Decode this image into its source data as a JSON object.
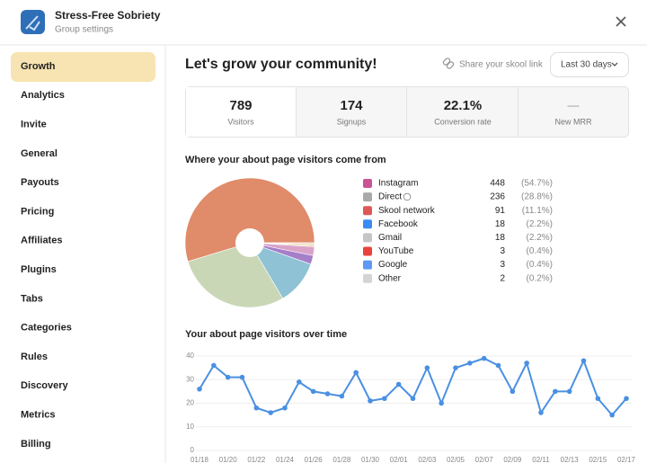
{
  "header": {
    "title": "Stress-Free Sobriety",
    "subtitle": "Group settings"
  },
  "nav": [
    "Growth",
    "Analytics",
    "Invite",
    "General",
    "Payouts",
    "Pricing",
    "Affiliates",
    "Plugins",
    "Tabs",
    "Categories",
    "Rules",
    "Discovery",
    "Metrics",
    "Billing"
  ],
  "page": {
    "title": "Let's grow your community!",
    "share_link": "Share your skool link",
    "range": "Last 30 days"
  },
  "stats": [
    {
      "value": "789",
      "label": "Visitors"
    },
    {
      "value": "174",
      "label": "Signups"
    },
    {
      "value": "22.1%",
      "label": "Conversion rate"
    },
    {
      "value": "—",
      "label": "New MRR"
    }
  ],
  "chart_data": [
    {
      "type": "pie",
      "title": "Where your about page visitors come from",
      "categories": [
        "Instagram",
        "Direct",
        "Skool network",
        "Facebook",
        "Gmail",
        "YouTube",
        "Google",
        "Other"
      ],
      "values": [
        448,
        236,
        91,
        18,
        18,
        3,
        3,
        2
      ],
      "shares": [
        "(54.7%)",
        "(28.8%)",
        "(11.1%)",
        "(2.2%)",
        "(2.2%)",
        "(0.4%)",
        "(0.4%)",
        "(0.2%)"
      ],
      "colors": [
        "#e08b69",
        "#c9d7b6",
        "#8fc2d5",
        "#a57fc9",
        "#d9a3c9",
        "#f0d3ae",
        "#e6c79c",
        "#d8d0c0"
      ]
    },
    {
      "type": "line",
      "title": "Your about page visitors over time",
      "categories": [
        "01/18",
        null,
        "01/20",
        null,
        "01/22",
        null,
        "01/24",
        null,
        "01/26",
        null,
        "01/28",
        null,
        "01/30",
        null,
        "02/01",
        null,
        "02/03",
        null,
        "02/05",
        null,
        "02/07",
        null,
        "02/09",
        null,
        "02/11",
        null,
        "02/13",
        null,
        "02/15",
        null,
        "02/17"
      ],
      "values": [
        26,
        36,
        31,
        31,
        18,
        16,
        18,
        29,
        25,
        24,
        23,
        33,
        21,
        22,
        28,
        22,
        35,
        20,
        35,
        37,
        39,
        36,
        25,
        37,
        16,
        25,
        25,
        38,
        22,
        15,
        22
      ],
      "color": "#4a90e2",
      "ylim": [
        0,
        42
      ],
      "yticks": [
        0,
        10,
        20,
        30,
        40
      ],
      "grid": true
    }
  ]
}
